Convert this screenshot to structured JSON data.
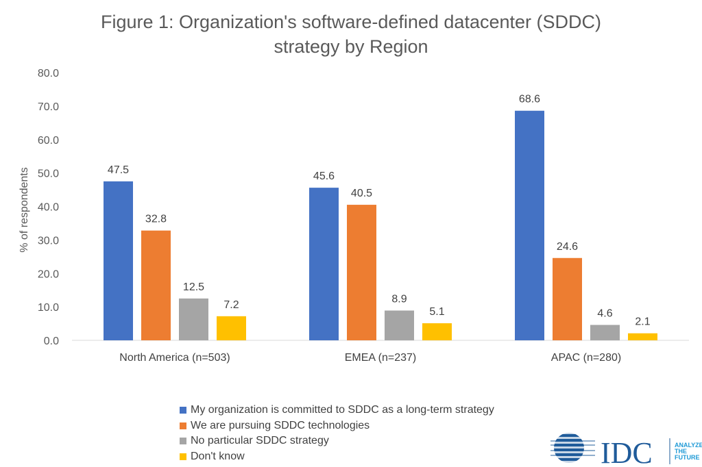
{
  "chart_data": {
    "type": "bar",
    "title": "Figure 1: Organization's software-defined datacenter (SDDC) strategy by Region",
    "title_lines": [
      "Figure 1: Organization's software-defined datacenter (SDDC)",
      "strategy by Region"
    ],
    "xlabel": "",
    "ylabel": "% of respondents",
    "ylim": [
      0,
      80
    ],
    "yticks": [
      "0.0",
      "10.0",
      "20.0",
      "30.0",
      "40.0",
      "50.0",
      "60.0",
      "70.0",
      "80.0"
    ],
    "grid": false,
    "legend_position": "bottom",
    "categories": [
      "North America (n=503)",
      "EMEA (n=237)",
      "APAC (n=280)"
    ],
    "series": [
      {
        "name": "My organization is committed to SDDC as a long-term strategy",
        "color": "#4472C4",
        "values": [
          47.5,
          45.6,
          68.6
        ]
      },
      {
        "name": "We are pursuing SDDC technologies",
        "color": "#ED7D31",
        "values": [
          32.8,
          40.5,
          24.6
        ]
      },
      {
        "name": "No particular SDDC strategy",
        "color": "#A5A5A5",
        "values": [
          12.5,
          8.9,
          4.6
        ]
      },
      {
        "name": "Don't know",
        "color": "#FFC000",
        "values": [
          7.2,
          5.1,
          2.1
        ]
      }
    ]
  },
  "logo": {
    "name": "IDC",
    "tagline": "ANALYZE THE FUTURE",
    "color": "#1F5B9A"
  }
}
